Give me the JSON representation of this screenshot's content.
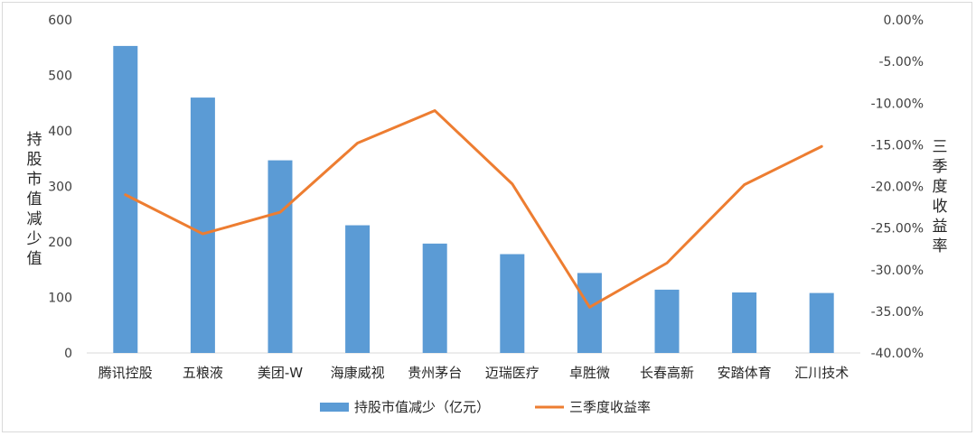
{
  "chart_data": {
    "type": "bar+line",
    "categories": [
      "腾讯控股",
      "五粮液",
      "美团-W",
      "海康威视",
      "贵州茅台",
      "迈瑞医疗",
      "卓胜微",
      "长春高新",
      "安踏体育",
      "汇川技术"
    ],
    "series": [
      {
        "name": "持股市值减少（亿元）",
        "type": "bar",
        "axis": "left",
        "color": "#5b9bd5",
        "values": [
          553,
          460,
          347,
          230,
          197,
          178,
          144,
          114,
          109,
          108
        ]
      },
      {
        "name": "三季度收益率",
        "type": "line",
        "axis": "right",
        "color": "#ed7d31",
        "values": [
          -21.0,
          -25.7,
          -23.1,
          -14.8,
          -10.9,
          -19.7,
          -34.5,
          -29.2,
          -19.8,
          -15.2
        ]
      }
    ],
    "ylabel": "持股市值减少值",
    "y2label": "三季度收益率",
    "ylim": [
      0,
      600
    ],
    "y2lim": [
      -40,
      0
    ],
    "yticks": [
      "0",
      "100",
      "200",
      "300",
      "400",
      "500",
      "600"
    ],
    "y2ticks": [
      "0.00%",
      "-5.00%",
      "-10.00%",
      "-15.00%",
      "-20.00%",
      "-25.00%",
      "-30.00%",
      "-35.00%",
      "-40.00%"
    ],
    "grid": false,
    "legend": "bottom-center"
  }
}
